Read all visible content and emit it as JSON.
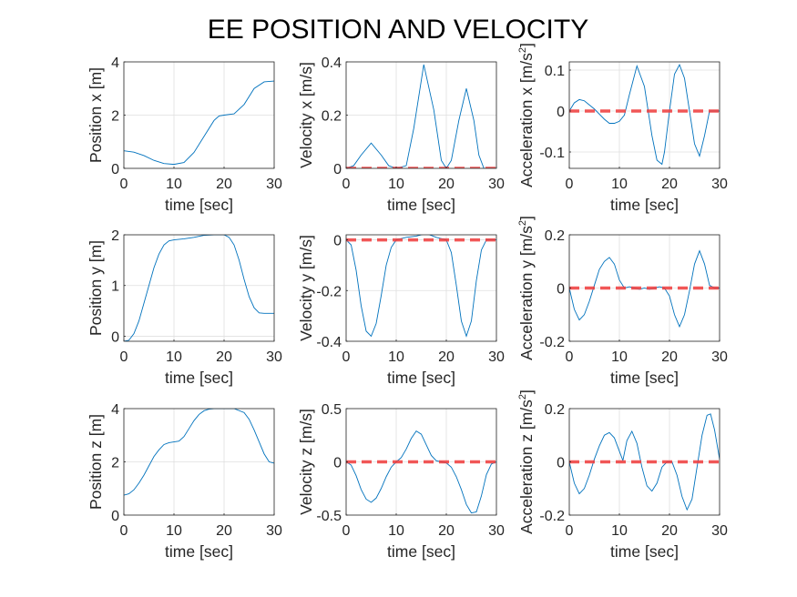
{
  "figure": {
    "title": "EE POSITION AND VELOCITY"
  },
  "chart_data": [
    {
      "type": "line",
      "title": "",
      "xlabel": "time [sec]",
      "ylabel": "Position x [m]",
      "xlim": [
        0,
        30
      ],
      "ylim": [
        0,
        4
      ],
      "xticks": [
        0,
        10,
        20,
        30
      ],
      "yticks": [
        0,
        2,
        4
      ],
      "grid": true,
      "series": [
        {
          "x": [
            0,
            2,
            4,
            6,
            8,
            10,
            12,
            14,
            16,
            18,
            19,
            20,
            22,
            24,
            26,
            28,
            30
          ],
          "y": [
            0.66,
            0.61,
            0.48,
            0.3,
            0.18,
            0.15,
            0.22,
            0.6,
            1.2,
            1.8,
            1.97,
            2.0,
            2.05,
            2.4,
            3.0,
            3.25,
            3.28
          ]
        }
      ]
    },
    {
      "type": "line",
      "title": "",
      "xlabel": "time [sec]",
      "ylabel": "Velocity x [m/s]",
      "xlim": [
        0,
        30
      ],
      "ylim": [
        0,
        0.4
      ],
      "xticks": [
        0,
        10,
        20,
        30
      ],
      "yticks": [
        0,
        0.2,
        0.4
      ],
      "grid": true,
      "series": [
        {
          "x": [
            0,
            1.5,
            3,
            5,
            7,
            8.5,
            10,
            12,
            13.5,
            15.5,
            17.5,
            19,
            20,
            21,
            22.5,
            24,
            25.5,
            26.5,
            27.5,
            28.5,
            30
          ],
          "y": [
            0,
            0.01,
            0.05,
            0.095,
            0.05,
            0.01,
            0,
            0.01,
            0.15,
            0.39,
            0.22,
            0.03,
            0,
            0.03,
            0.18,
            0.3,
            0.18,
            0.05,
            0,
            0,
            0
          ]
        },
        {
          "x": [
            0,
            30
          ],
          "y": [
            0,
            0
          ]
        }
      ]
    },
    {
      "type": "line",
      "title": "",
      "xlabel": "time [sec]",
      "ylabel": "Acceleration x [m/s2]",
      "xlim": [
        0,
        30
      ],
      "ylim": [
        -0.14,
        0.12
      ],
      "xticks": [
        0,
        10,
        20,
        30
      ],
      "yticks": [
        -0.1,
        0,
        0.1
      ],
      "grid": true,
      "series": [
        {
          "x": [
            0,
            1,
            2,
            3,
            5,
            7,
            8,
            9,
            10,
            11,
            12,
            13.5,
            15,
            16.5,
            17.5,
            18.5,
            19,
            20,
            21,
            22,
            23,
            24,
            25,
            26,
            27,
            28,
            29,
            30
          ],
          "y": [
            0,
            0.02,
            0.028,
            0.025,
            0.005,
            -0.02,
            -0.03,
            -0.03,
            -0.025,
            -0.01,
            0.04,
            0.11,
            0.06,
            -0.06,
            -0.12,
            -0.13,
            -0.1,
            0,
            0.09,
            0.113,
            0.08,
            0.0,
            -0.08,
            -0.11,
            -0.06,
            0,
            0,
            0
          ]
        },
        {
          "x": [
            0,
            30
          ],
          "y": [
            0,
            0
          ]
        }
      ]
    },
    {
      "type": "line",
      "title": "",
      "xlabel": "time [sec]",
      "ylabel": "Position y [m]",
      "xlim": [
        0,
        30
      ],
      "ylim": [
        -0.1,
        2
      ],
      "xticks": [
        0,
        10,
        20,
        30
      ],
      "yticks": [
        0,
        1,
        2
      ],
      "grid": true,
      "series": [
        {
          "x": [
            0,
            1,
            2,
            3,
            4,
            5,
            6,
            7,
            8,
            9,
            10,
            12,
            14,
            16,
            18,
            20,
            21,
            22,
            23,
            24,
            25,
            26,
            27,
            28,
            29,
            30
          ],
          "y": [
            -0.1,
            -0.08,
            0.05,
            0.3,
            0.65,
            1.0,
            1.35,
            1.62,
            1.8,
            1.88,
            1.9,
            1.92,
            1.95,
            1.99,
            2.0,
            2.0,
            1.95,
            1.8,
            1.5,
            1.12,
            0.78,
            0.56,
            0.46,
            0.45,
            0.45,
            0.45
          ]
        }
      ]
    },
    {
      "type": "line",
      "title": "",
      "xlabel": "time [sec]",
      "ylabel": "Velocity y [m/s]",
      "xlim": [
        0,
        30
      ],
      "ylim": [
        -0.4,
        0.02
      ],
      "xticks": [
        0,
        10,
        20,
        30
      ],
      "yticks": [
        -0.4,
        -0.2,
        0
      ],
      "grid": true,
      "series": [
        {
          "x": [
            0,
            1,
            2,
            3,
            4,
            5,
            6,
            7,
            8,
            9,
            10,
            12,
            14,
            16,
            18,
            20,
            21,
            22,
            23,
            24,
            25,
            26,
            27,
            28,
            30
          ],
          "y": [
            0,
            -0.02,
            -0.12,
            -0.26,
            -0.36,
            -0.38,
            -0.33,
            -0.22,
            -0.1,
            -0.03,
            0,
            0.01,
            0.015,
            0.025,
            0.01,
            0,
            -0.05,
            -0.18,
            -0.32,
            -0.38,
            -0.32,
            -0.16,
            -0.04,
            0,
            0
          ]
        },
        {
          "x": [
            0,
            30
          ],
          "y": [
            0,
            0
          ]
        }
      ]
    },
    {
      "type": "line",
      "title": "",
      "xlabel": "time [sec]",
      "ylabel": "Acceleration y [m/s2]",
      "xlim": [
        0,
        30
      ],
      "ylim": [
        -0.2,
        0.2
      ],
      "xticks": [
        0,
        10,
        20,
        30
      ],
      "yticks": [
        -0.2,
        0,
        0.2
      ],
      "grid": true,
      "series": [
        {
          "x": [
            0,
            1,
            2,
            3,
            4,
            5,
            6,
            7,
            8,
            9,
            10,
            11,
            12,
            13,
            14,
            15,
            16,
            17,
            18,
            19,
            20,
            21,
            22,
            23,
            24,
            25,
            26,
            27,
            28,
            29,
            30
          ],
          "y": [
            0,
            -0.08,
            -0.12,
            -0.1,
            -0.05,
            0.01,
            0.07,
            0.1,
            0.115,
            0.09,
            0.03,
            0,
            0.005,
            0,
            -0.005,
            0,
            -0.005,
            0,
            0.005,
            0,
            -0.03,
            -0.1,
            -0.145,
            -0.1,
            -0.01,
            0.09,
            0.14,
            0.09,
            0.01,
            0,
            0
          ]
        },
        {
          "x": [
            0,
            30
          ],
          "y": [
            0,
            0
          ]
        }
      ]
    },
    {
      "type": "line",
      "title": "",
      "xlabel": "time [sec]",
      "ylabel": "Position z [m]",
      "xlim": [
        0,
        30
      ],
      "ylim": [
        0,
        4
      ],
      "xticks": [
        0,
        10,
        20,
        30
      ],
      "yticks": [
        0,
        2,
        4
      ],
      "grid": true,
      "series": [
        {
          "x": [
            0,
            1,
            2,
            3,
            4,
            5,
            6,
            7,
            8,
            9,
            10,
            11,
            12,
            13,
            14,
            15,
            16,
            17,
            18,
            20,
            22,
            24,
            25,
            26,
            27,
            28,
            29,
            30
          ],
          "y": [
            0.75,
            0.8,
            0.95,
            1.2,
            1.5,
            1.85,
            2.2,
            2.45,
            2.65,
            2.72,
            2.75,
            2.78,
            2.95,
            3.25,
            3.55,
            3.78,
            3.92,
            3.98,
            4.0,
            4.0,
            4.0,
            3.85,
            3.6,
            3.2,
            2.75,
            2.3,
            2.0,
            1.95
          ]
        }
      ]
    },
    {
      "type": "line",
      "title": "",
      "xlabel": "time [sec]",
      "ylabel": "Velocity z [m/s]",
      "xlim": [
        0,
        30
      ],
      "ylim": [
        -0.5,
        0.5
      ],
      "xticks": [
        0,
        10,
        20,
        30
      ],
      "yticks": [
        -0.5,
        0,
        0.5
      ],
      "grid": true,
      "series": [
        {
          "x": [
            0,
            1,
            2,
            3,
            4,
            5,
            6,
            7,
            8,
            9,
            10,
            11,
            12,
            13,
            14,
            15,
            16,
            17,
            18,
            19,
            20,
            21,
            22,
            23,
            24,
            25,
            26,
            27,
            28,
            29,
            30
          ],
          "y": [
            0,
            -0.03,
            -0.13,
            -0.26,
            -0.35,
            -0.38,
            -0.34,
            -0.25,
            -0.14,
            -0.05,
            0,
            0.04,
            0.12,
            0.22,
            0.29,
            0.26,
            0.16,
            0.06,
            0.01,
            0,
            -0.01,
            -0.05,
            -0.14,
            -0.26,
            -0.4,
            -0.48,
            -0.47,
            -0.32,
            -0.12,
            -0.02,
            0
          ]
        },
        {
          "x": [
            0,
            30
          ],
          "y": [
            0,
            0
          ]
        }
      ]
    },
    {
      "type": "line",
      "title": "",
      "xlabel": "time [sec]",
      "ylabel": "Acceleration z [m/s2]",
      "xlim": [
        0,
        30
      ],
      "ylim": [
        -0.2,
        0.2
      ],
      "xticks": [
        0,
        10,
        20,
        30
      ],
      "yticks": [
        -0.2,
        0,
        0.2
      ],
      "grid": true,
      "series": [
        {
          "x": [
            0,
            1,
            2,
            3,
            4,
            5,
            6,
            7,
            8,
            9,
            10,
            10.7,
            11.5,
            12.5,
            13.5,
            14.5,
            15.5,
            16.5,
            17.5,
            18.5,
            19.5,
            20.5,
            21.5,
            22.5,
            23.5,
            24.5,
            25.5,
            26.5,
            27.5,
            28.2,
            29,
            30
          ],
          "y": [
            0,
            -0.08,
            -0.12,
            -0.1,
            -0.05,
            0.01,
            0.06,
            0.1,
            0.11,
            0.09,
            0.04,
            0.005,
            0.08,
            0.115,
            0.07,
            -0.02,
            -0.09,
            -0.11,
            -0.08,
            -0.02,
            0,
            0,
            -0.05,
            -0.13,
            -0.18,
            -0.14,
            -0.02,
            0.1,
            0.175,
            0.18,
            0.12,
            0.01
          ]
        },
        {
          "x": [
            0,
            30
          ],
          "y": [
            0,
            0
          ]
        }
      ]
    }
  ]
}
